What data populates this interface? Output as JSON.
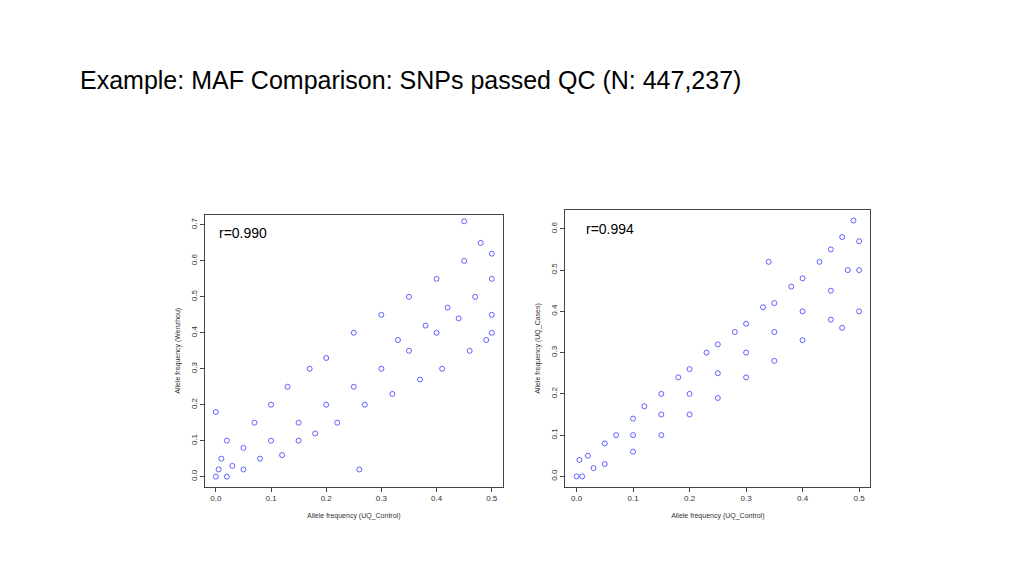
{
  "title": "Example: MAF Comparison: SNPs passed QC (N: 447,237)",
  "chart_data": [
    {
      "type": "scatter",
      "annotation": "r=0.990",
      "x_label": "Allele frequency (UQ_Control)",
      "y_label": "Allele frequency (Wenzhou)",
      "color": "#0000ff",
      "marker": "circle-open",
      "xlim": [
        -0.02,
        0.52
      ],
      "ylim": [
        -0.028,
        0.728
      ],
      "xticks": [
        {
          "value": 0,
          "label": "0.0"
        },
        0.1,
        0.2,
        0.3,
        0.4,
        0.5
      ],
      "yticks": [
        {
          "value": 0,
          "label": "0.0"
        },
        0.1,
        0.2,
        0.3,
        0.4,
        0.5,
        0.6,
        0.7
      ],
      "grid": false,
      "x": [
        0,
        0.005,
        0.01,
        0,
        0.02,
        0.02,
        0.03,
        0.05,
        0.05,
        0.07,
        0.08,
        0.1,
        0.1,
        0.12,
        0.13,
        0.15,
        0.15,
        0.17,
        0.18,
        0.2,
        0.2,
        0.22,
        0.26,
        0.25,
        0.25,
        0.27,
        0.3,
        0.3,
        0.32,
        0.33,
        0.35,
        0.35,
        0.37,
        0.38,
        0.4,
        0.4,
        0.41,
        0.42,
        0.44,
        0.45,
        0.45,
        0.46,
        0.47,
        0.48,
        0.49,
        0.5,
        0.5,
        0.5,
        0.5
      ],
      "values": [
        0,
        0.02,
        0.05,
        0.18,
        0.1,
        0,
        0.03,
        0.08,
        0.02,
        0.15,
        0.05,
        0.1,
        0.2,
        0.06,
        0.25,
        0.15,
        0.1,
        0.3,
        0.12,
        0.2,
        0.33,
        0.15,
        0.02,
        0.25,
        0.4,
        0.2,
        0.3,
        0.45,
        0.23,
        0.38,
        0.35,
        0.5,
        0.27,
        0.42,
        0.4,
        0.55,
        0.3,
        0.47,
        0.44,
        0.6,
        0.71,
        0.35,
        0.5,
        0.65,
        0.38,
        0.45,
        0.55,
        0.62,
        0.4
      ]
    },
    {
      "type": "scatter",
      "annotation": "r=0.994",
      "x_label": "Allele frequency (UQ_Control)",
      "y_label": "Allele frequency (UQ_Cases)",
      "color": "#0000ff",
      "marker": "circle-open",
      "xlim": [
        -0.02,
        0.52
      ],
      "ylim": [
        -0.025,
        0.645
      ],
      "xticks": [
        {
          "value": 0,
          "label": "0.0"
        },
        0.1,
        0.2,
        0.3,
        0.4,
        0.5
      ],
      "yticks": [
        {
          "value": 0,
          "label": "0.0"
        },
        0.1,
        0.2,
        0.3,
        0.4,
        0.5,
        0.6
      ],
      "grid": false,
      "x": [
        0,
        0.005,
        0.01,
        0.02,
        0.03,
        0.05,
        0.05,
        0.07,
        0.1,
        0.1,
        0.1,
        0.12,
        0.15,
        0.15,
        0.15,
        0.18,
        0.2,
        0.2,
        0.2,
        0.23,
        0.25,
        0.25,
        0.25,
        0.28,
        0.3,
        0.3,
        0.3,
        0.33,
        0.35,
        0.35,
        0.35,
        0.38,
        0.4,
        0.4,
        0.4,
        0.43,
        0.45,
        0.45,
        0.45,
        0.47,
        0.48,
        0.49,
        0.5,
        0.5,
        0.5,
        0.47,
        0.34
      ],
      "values": [
        0,
        0.04,
        0,
        0.05,
        0.02,
        0.08,
        0.03,
        0.1,
        0.1,
        0.14,
        0.06,
        0.17,
        0.15,
        0.2,
        0.1,
        0.24,
        0.2,
        0.26,
        0.15,
        0.3,
        0.25,
        0.32,
        0.19,
        0.35,
        0.3,
        0.37,
        0.24,
        0.41,
        0.35,
        0.42,
        0.28,
        0.46,
        0.4,
        0.48,
        0.33,
        0.52,
        0.45,
        0.55,
        0.38,
        0.58,
        0.5,
        0.62,
        0.5,
        0.57,
        0.4,
        0.36,
        0.52
      ]
    }
  ]
}
